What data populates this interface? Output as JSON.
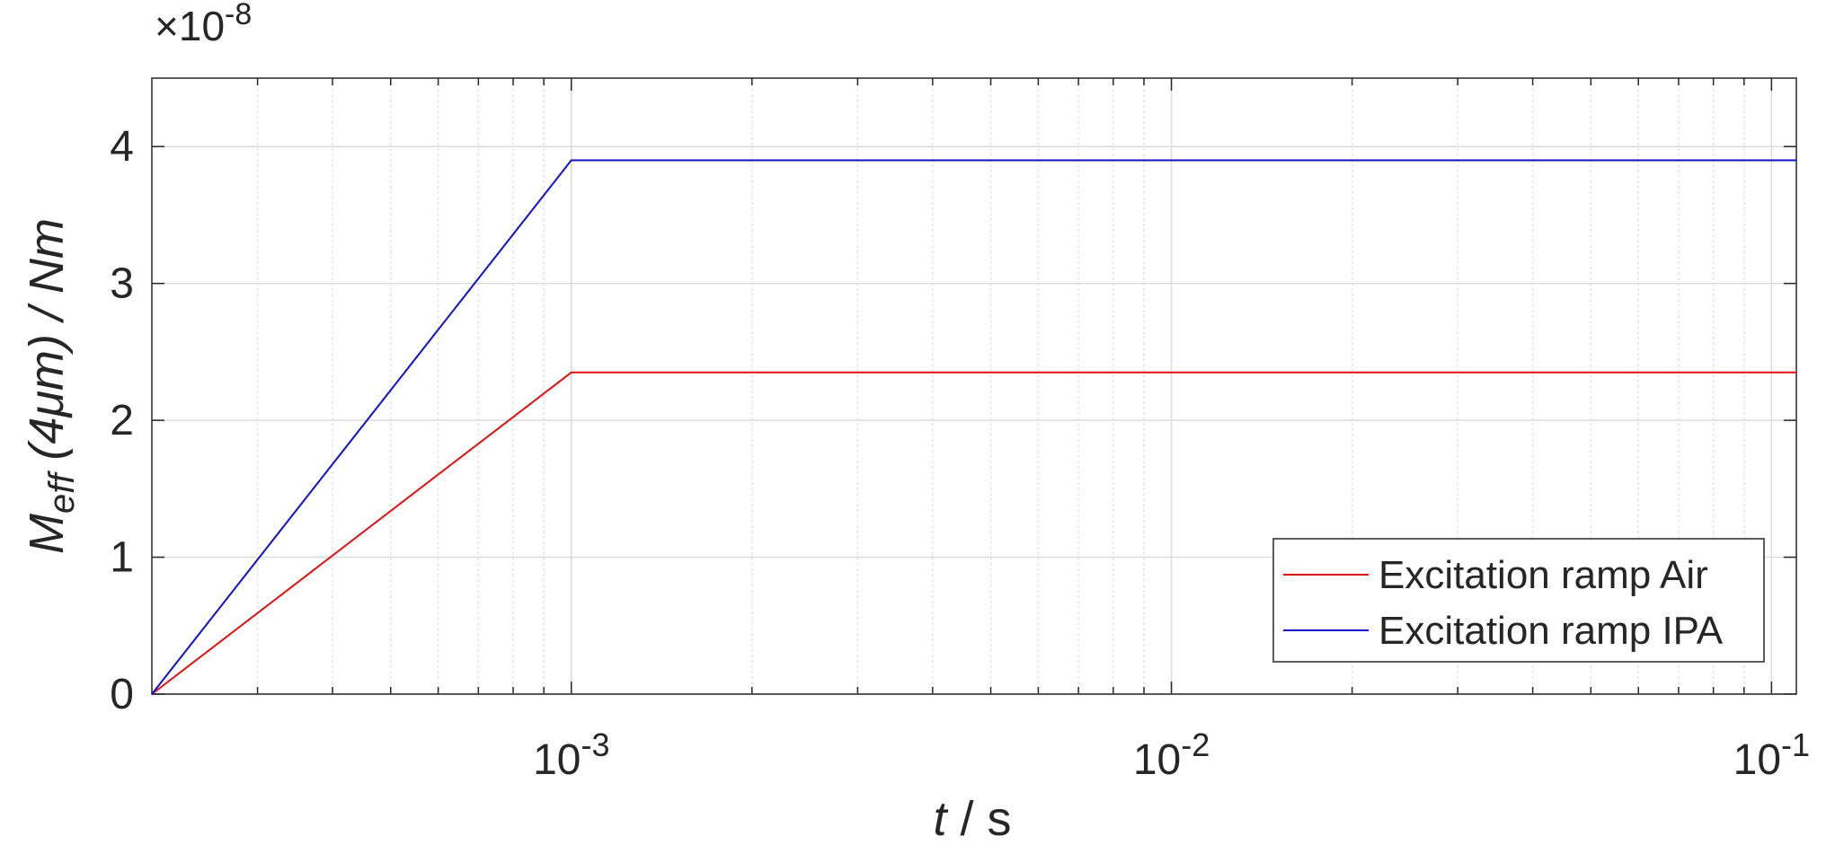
{
  "chart_data": {
    "type": "line",
    "x_label": {
      "symbol": "t",
      "rest": " / s"
    },
    "y_label": {
      "symbol": "M",
      "subscript": "eff",
      "rest": " (4μm) / Nm"
    },
    "y_multiplier": {
      "label": "×10",
      "exponent": "-8"
    },
    "x": [
      0.0002,
      0.001,
      0.11
    ],
    "series": [
      {
        "name": "Excitation ramp Air",
        "color": "#e01010",
        "values": [
          0,
          2.35,
          2.35
        ]
      },
      {
        "name": "Excitation ramp IPA",
        "color": "#1010c8",
        "values": [
          0,
          3.9,
          3.9
        ]
      }
    ],
    "xscale": "log",
    "xlim": [
      0.0002,
      0.11
    ],
    "xticks": [
      {
        "value": 0.001,
        "label": "10",
        "exponent": "-3"
      },
      {
        "value": 0.01,
        "label": "10",
        "exponent": "-2"
      },
      {
        "value": 0.1,
        "label": "10",
        "exponent": "-1"
      }
    ],
    "xminor_ticks": [
      0.0003,
      0.0004,
      0.0005,
      0.0006,
      0.0007,
      0.0008,
      0.0009,
      0.002,
      0.003,
      0.004,
      0.005,
      0.006,
      0.007,
      0.008,
      0.009,
      0.02,
      0.03,
      0.04,
      0.05,
      0.06,
      0.07,
      0.08,
      0.09
    ],
    "ylim": [
      0,
      4.5
    ],
    "yticks": [
      0,
      1,
      2,
      3,
      4
    ],
    "grid": true,
    "legend": "lower-right"
  }
}
